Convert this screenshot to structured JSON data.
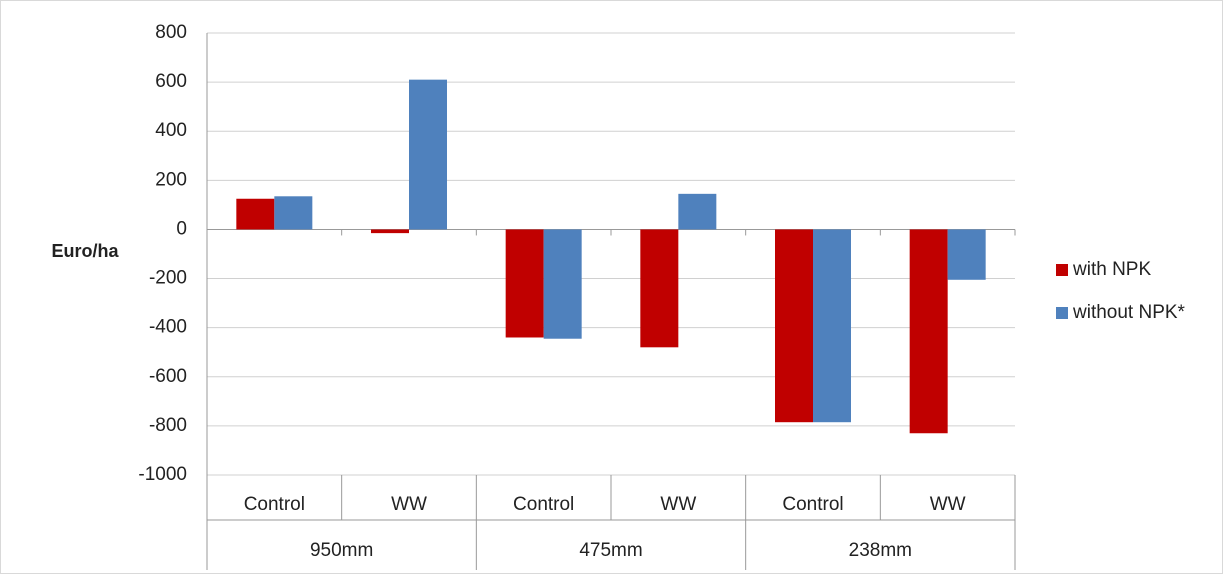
{
  "chart_data": {
    "type": "bar",
    "ylabel": "Euro/ha",
    "categories": [
      "Control",
      "WW",
      "Control",
      "WW",
      "Control",
      "WW"
    ],
    "groups": [
      "950mm",
      "475mm",
      "238mm"
    ],
    "series": [
      {
        "name": "with NPK",
        "color": "#c00000",
        "values": [
          125,
          -15,
          -440,
          -480,
          -785,
          -830
        ]
      },
      {
        "name": "without NPK*",
        "color": "#4f81bd",
        "values": [
          135,
          610,
          -445,
          145,
          -785,
          -205
        ]
      }
    ],
    "ylim": [
      -1000,
      800
    ],
    "yticks": [
      -1000,
      -800,
      -600,
      -400,
      -200,
      0,
      200,
      400,
      600,
      800
    ],
    "grid": true,
    "legend": "right"
  }
}
